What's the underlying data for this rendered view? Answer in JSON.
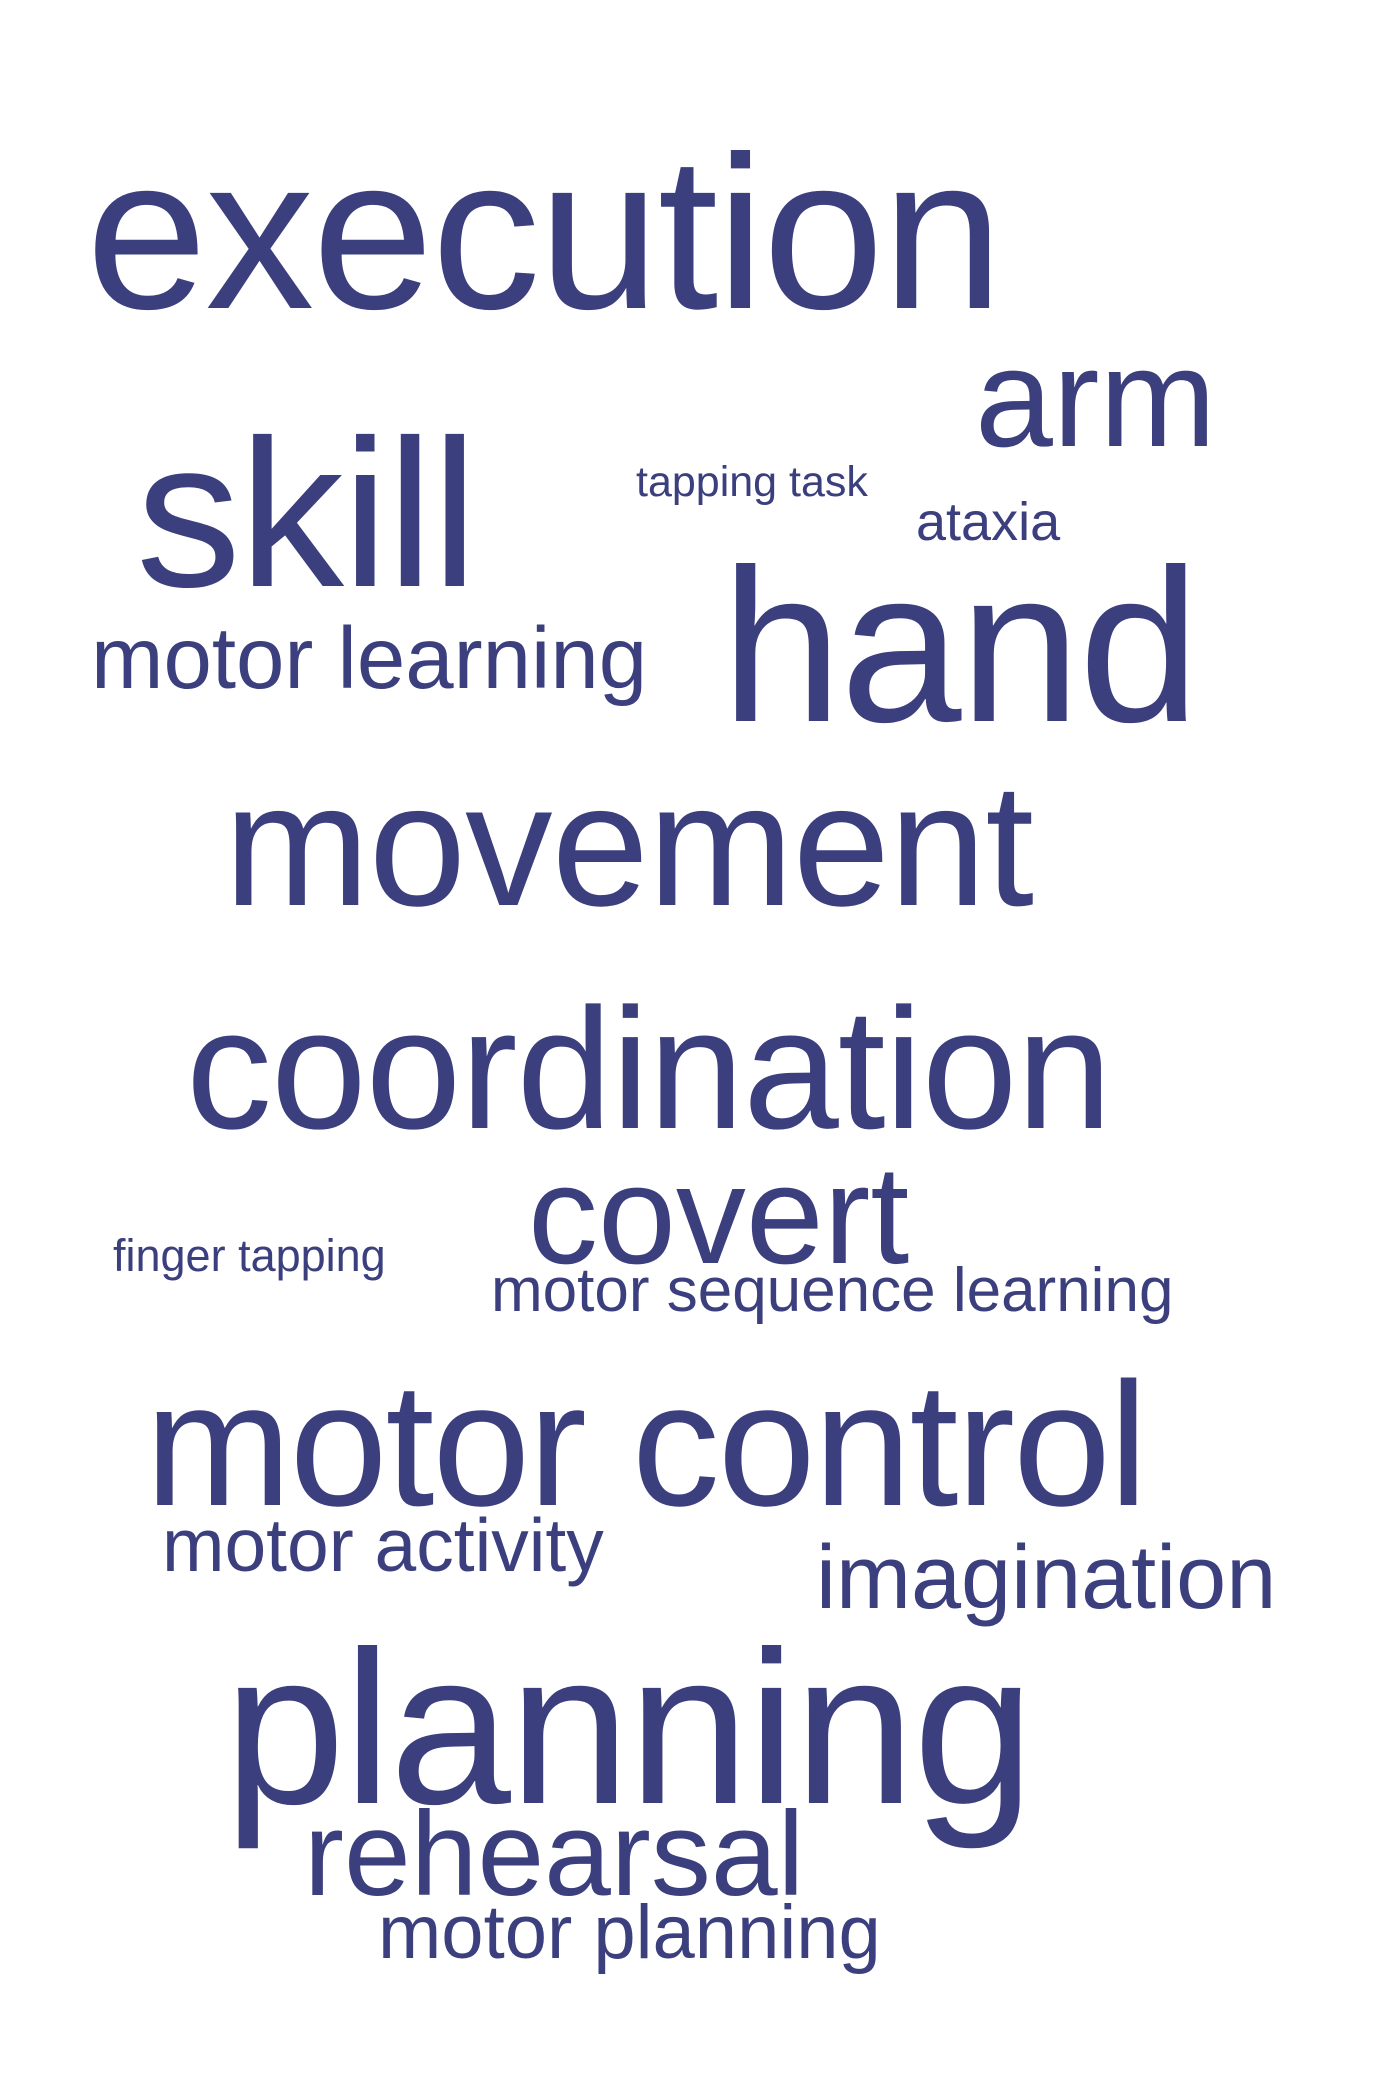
{
  "colors": {
    "text": "#3b3f7d",
    "background": "#ffffff"
  },
  "words": {
    "execution": "execution",
    "arm": "arm",
    "skill": "skill",
    "tapping_task": "tapping task",
    "ataxia": "ataxia",
    "motor_learning": "motor learning",
    "hand": "hand",
    "movement": "movement",
    "coordination": "coordination",
    "covert": "covert",
    "finger_tapping": "finger tapping",
    "motor_sequence_learning": "motor sequence learning",
    "motor_control": "motor control",
    "motor_activity": "motor activity",
    "imagination": "imagination",
    "planning": "planning",
    "rehearsal": "rehearsal",
    "motor_planning": "motor planning"
  }
}
